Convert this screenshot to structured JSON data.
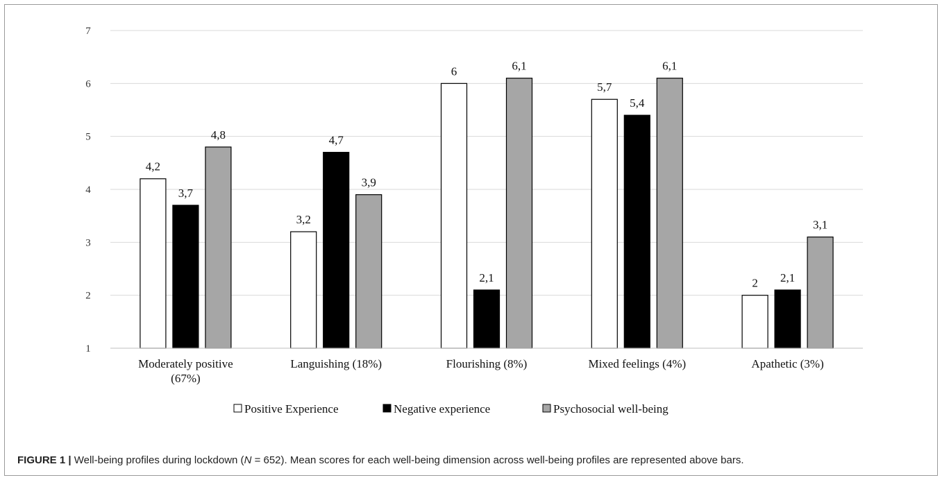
{
  "chart_data": {
    "type": "bar",
    "categories": [
      [
        "Moderately positive",
        "(67%)"
      ],
      [
        "Languishing (18%)"
      ],
      [
        "Flourishing (8%)"
      ],
      [
        "Mixed feelings (4%)"
      ],
      [
        "Apathetic (3%)"
      ]
    ],
    "series": [
      {
        "name": "Positive Experience",
        "color": "#ffffff",
        "values": [
          4.2,
          3.2,
          6,
          5.7,
          2
        ],
        "labels": [
          "4,2",
          "3,2",
          "6",
          "5,7",
          "2"
        ]
      },
      {
        "name": "Negative experience",
        "color": "#000000",
        "values": [
          3.7,
          4.7,
          2.1,
          5.4,
          2.1
        ],
        "labels": [
          "3,7",
          "4,7",
          "2,1",
          "5,4",
          "2,1"
        ]
      },
      {
        "name": "Psychosocial well-being",
        "color": "#a6a6a6",
        "values": [
          4.8,
          3.9,
          6.1,
          6.1,
          3.1
        ],
        "labels": [
          "4,8",
          "3,9",
          "6,1",
          "6,1",
          "3,1"
        ]
      }
    ],
    "ylim": [
      1,
      7
    ],
    "yticks": [
      "1",
      "2",
      "3",
      "4",
      "5",
      "6",
      "7"
    ],
    "grid": true,
    "legend_position": "bottom"
  },
  "caption": {
    "label": "FIGURE 1 |",
    "text_before_n": " Well-being profiles during lockdown (",
    "n_symbol": "N",
    "text_after_n": " = 652). Mean scores for each well-being dimension across well-being profiles are represented above bars."
  }
}
